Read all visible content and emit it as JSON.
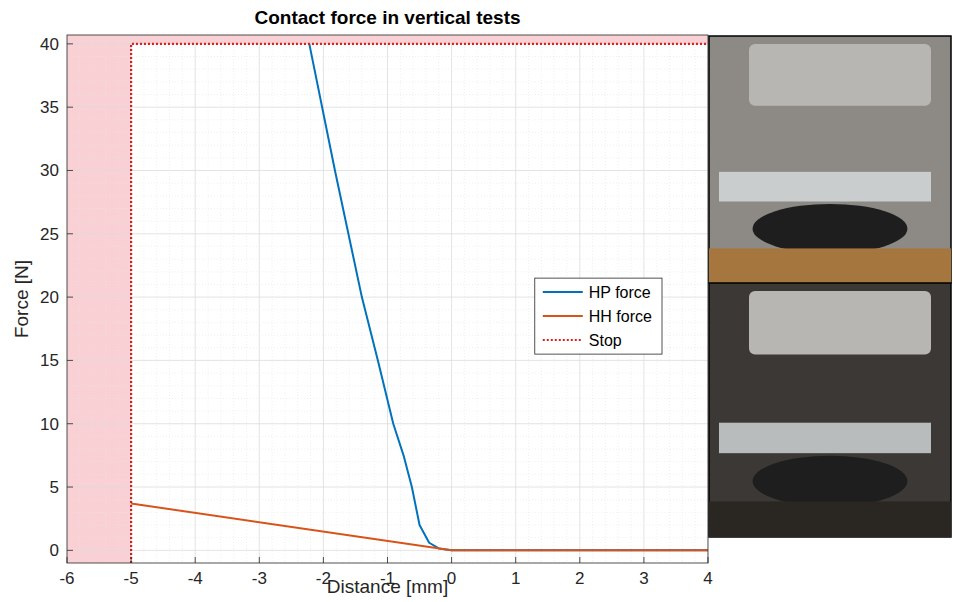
{
  "chart_data": {
    "type": "line",
    "title": "Contact force in vertical tests",
    "x_label": "Distance [mm]",
    "y_label": "Force [N]",
    "xlim": [
      -6,
      4
    ],
    "ylim": [
      -1,
      40.7
    ],
    "xticks": [
      -6,
      -5,
      -4,
      -3,
      -2,
      -1,
      0,
      1,
      2,
      3,
      4
    ],
    "yticks": [
      0,
      5,
      10,
      15,
      20,
      25,
      30,
      35,
      40
    ],
    "grid": true,
    "legend": "right",
    "series": [
      {
        "name": "HP force",
        "color": "#0072bd",
        "line_style": "solid",
        "x": [
          4,
          0,
          -0.2,
          -0.35,
          -0.5,
          -0.62,
          -0.75,
          -0.91,
          -1.15,
          -1.4,
          -1.82,
          -2.22
        ],
        "values": [
          0,
          0,
          0.15,
          0.6,
          2,
          5,
          7.5,
          10,
          15,
          20,
          30,
          40
        ]
      },
      {
        "name": "HH force",
        "color": "#d95319",
        "line_style": "solid",
        "x": [
          4,
          0,
          -5
        ],
        "values": [
          0,
          0,
          3.7
        ]
      },
      {
        "name": "Stop",
        "color": "#d62020",
        "line_style": "dotted",
        "x": [
          -5,
          -5,
          4
        ],
        "values": [
          -1,
          40,
          40
        ]
      }
    ]
  }
}
